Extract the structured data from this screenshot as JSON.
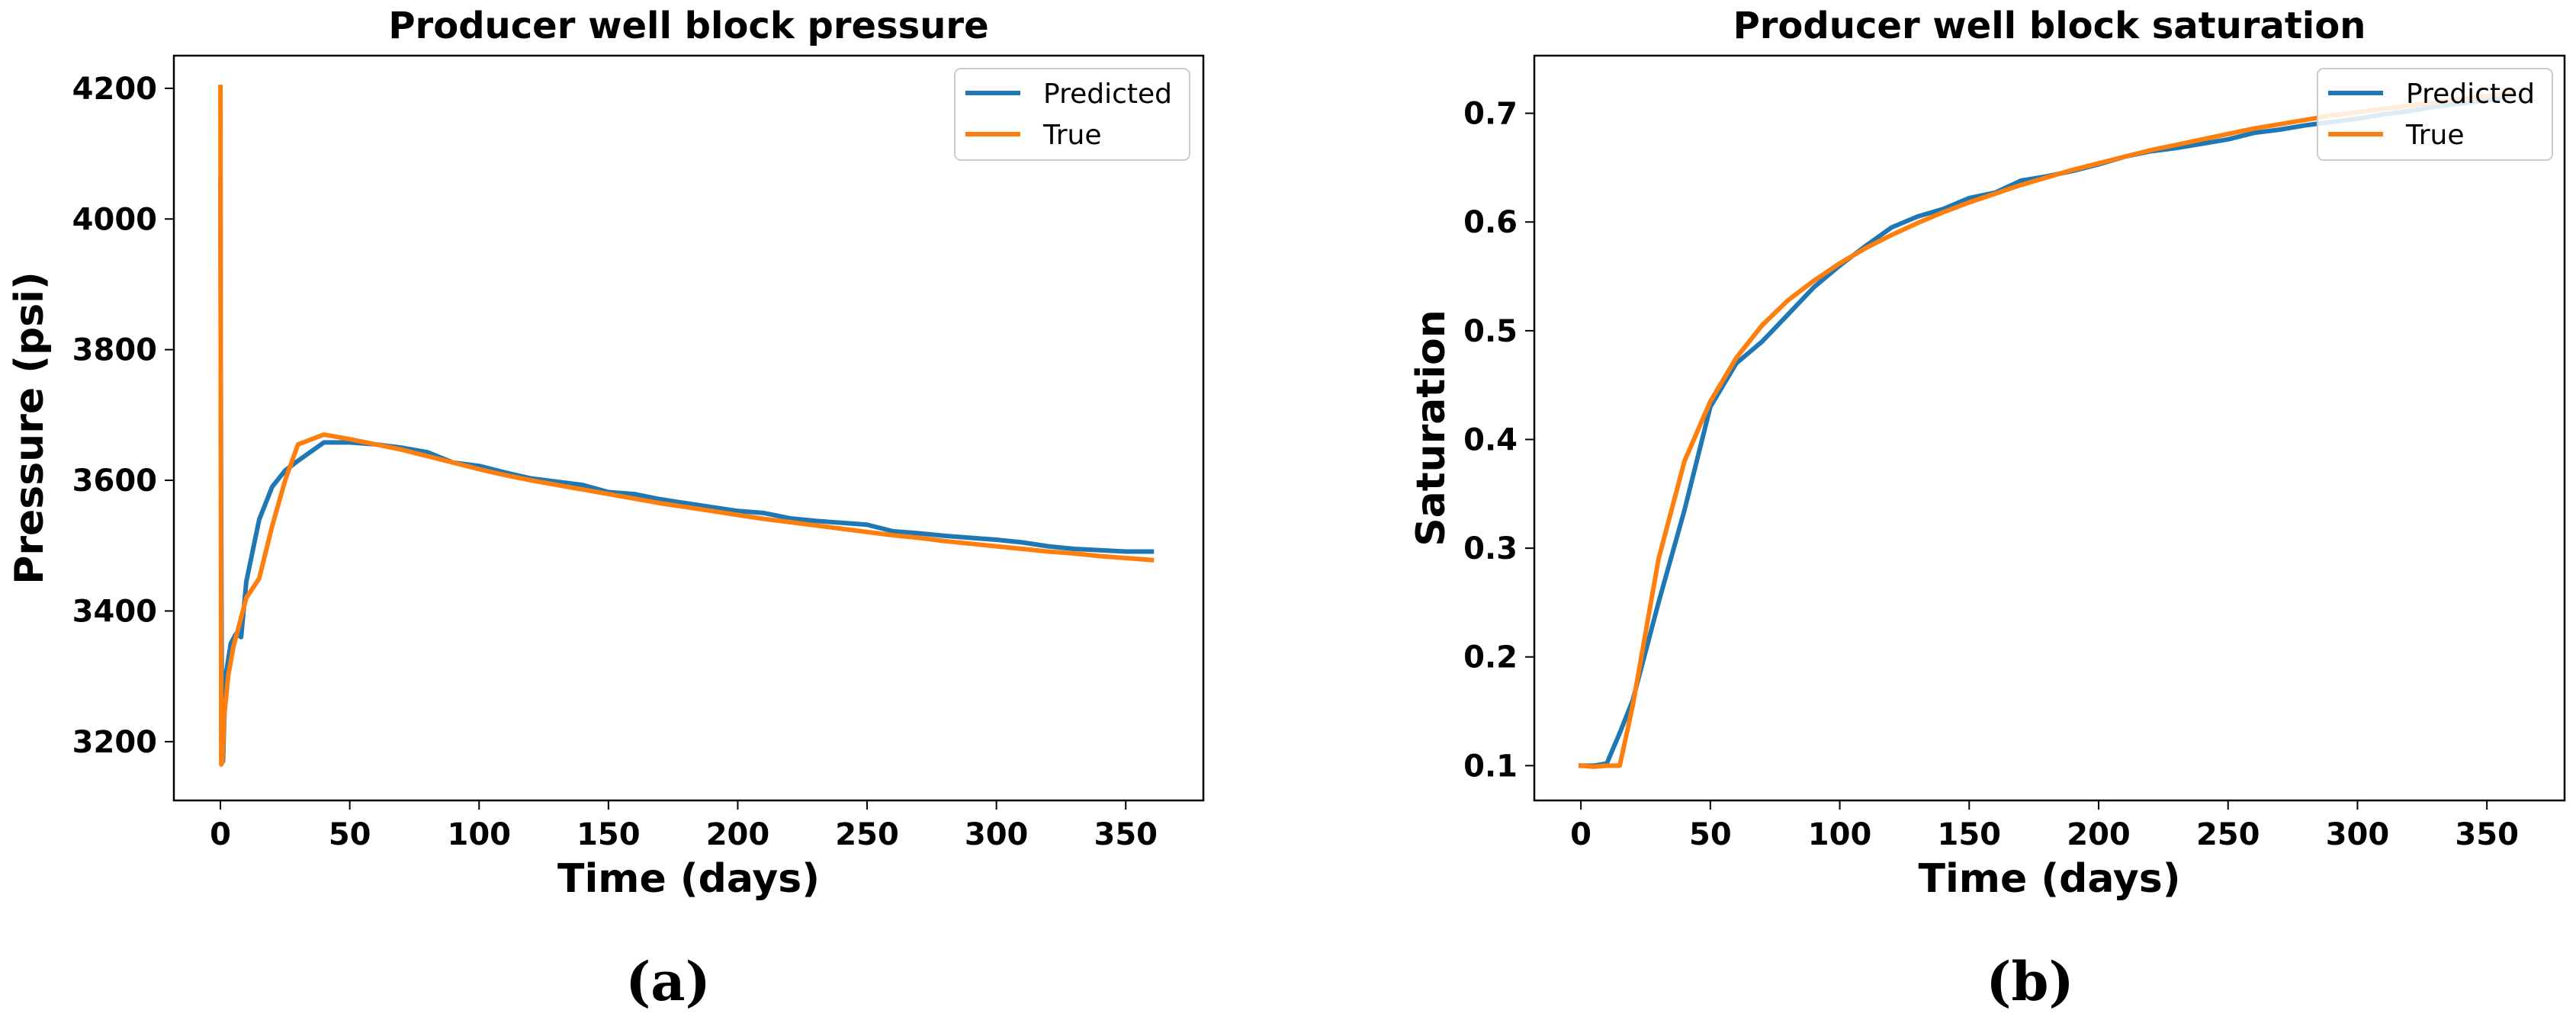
{
  "chart_data": [
    {
      "type": "line",
      "title": "Producer well block pressure",
      "xlabel": "Time (days)",
      "ylabel": "Pressure (psi)",
      "xlim": [
        -18,
        380
      ],
      "ylim": [
        3110,
        4250
      ],
      "xticks": [
        0,
        50,
        100,
        150,
        200,
        250,
        300,
        350
      ],
      "yticks": [
        3200,
        3400,
        3600,
        3800,
        4000,
        4200
      ],
      "legend": "top-right",
      "grid": false,
      "caption": "(a)",
      "series": [
        {
          "name": "Predicted",
          "color": "#1f77b4",
          "x": [
            0,
            0.2,
            0.5,
            1,
            2,
            4,
            6,
            8,
            10,
            15,
            20,
            25,
            30,
            40,
            50,
            60,
            70,
            80,
            90,
            100,
            110,
            120,
            130,
            140,
            150,
            160,
            170,
            180,
            190,
            200,
            210,
            220,
            230,
            240,
            250,
            260,
            270,
            280,
            290,
            300,
            310,
            320,
            330,
            340,
            350,
            360
          ],
          "y": [
            4060,
            3650,
            3290,
            3170,
            3300,
            3350,
            3365,
            3360,
            3445,
            3540,
            3590,
            3615,
            3630,
            3658,
            3658,
            3655,
            3650,
            3643,
            3627,
            3622,
            3612,
            3603,
            3598,
            3593,
            3582,
            3579,
            3571,
            3565,
            3559,
            3553,
            3550,
            3542,
            3538,
            3535,
            3532,
            3522,
            3519,
            3515,
            3512,
            3509,
            3505,
            3499,
            3495,
            3493,
            3491,
            3491
          ]
        },
        {
          "name": "True",
          "color": "#ff7f0e",
          "x": [
            0,
            0.3,
            0.7,
            1.5,
            3,
            5,
            8,
            10,
            15,
            20,
            25,
            30,
            40,
            50,
            60,
            70,
            80,
            90,
            100,
            110,
            120,
            130,
            140,
            150,
            160,
            170,
            180,
            190,
            200,
            210,
            220,
            230,
            240,
            250,
            260,
            270,
            280,
            290,
            300,
            310,
            320,
            330,
            340,
            350,
            360
          ],
          "y": [
            4202,
            3165,
            3168,
            3240,
            3300,
            3345,
            3390,
            3420,
            3450,
            3530,
            3600,
            3655,
            3670,
            3663,
            3655,
            3647,
            3637,
            3627,
            3617,
            3608,
            3600,
            3593,
            3586,
            3579,
            3572,
            3565,
            3559,
            3553,
            3547,
            3541,
            3536,
            3531,
            3526,
            3521,
            3516,
            3512,
            3507,
            3503,
            3499,
            3495,
            3491,
            3488,
            3484,
            3481,
            3478
          ]
        }
      ]
    },
    {
      "type": "line",
      "title": "Producer well block saturation",
      "xlabel": "Time (days)",
      "ylabel": "Saturation",
      "xlim": [
        -18,
        380
      ],
      "ylim": [
        0.068,
        0.753
      ],
      "xticks": [
        0,
        50,
        100,
        150,
        200,
        250,
        300,
        350
      ],
      "yticks": [
        0.1,
        0.2,
        0.3,
        0.4,
        0.5,
        0.6,
        0.7
      ],
      "legend": "top-right",
      "grid": false,
      "caption": "(b)",
      "series": [
        {
          "name": "Predicted",
          "color": "#1f77b4",
          "x": [
            0,
            5,
            10,
            15,
            20,
            30,
            40,
            50,
            60,
            70,
            80,
            90,
            100,
            110,
            120,
            130,
            140,
            150,
            160,
            170,
            180,
            190,
            200,
            210,
            220,
            230,
            240,
            250,
            260,
            270,
            280,
            290,
            300,
            310,
            320,
            330,
            340,
            350,
            360
          ],
          "y": [
            0.1,
            0.1,
            0.102,
            0.13,
            0.16,
            0.25,
            0.335,
            0.43,
            0.47,
            0.49,
            0.515,
            0.54,
            0.56,
            0.578,
            0.595,
            0.605,
            0.612,
            0.622,
            0.627,
            0.638,
            0.642,
            0.647,
            0.653,
            0.66,
            0.665,
            0.668,
            0.672,
            0.676,
            0.682,
            0.685,
            0.689,
            0.692,
            0.695,
            0.699,
            0.702,
            0.706,
            0.709,
            0.712,
            0.716
          ]
        },
        {
          "name": "True",
          "color": "#ff7f0e",
          "x": [
            0,
            5,
            10,
            15,
            20,
            30,
            40,
            50,
            60,
            70,
            80,
            90,
            100,
            110,
            120,
            130,
            140,
            150,
            160,
            170,
            180,
            190,
            200,
            210,
            220,
            230,
            240,
            250,
            260,
            270,
            280,
            290,
            300,
            310,
            320,
            330,
            340,
            350,
            360
          ],
          "y": [
            0.1,
            0.099,
            0.1,
            0.1,
            0.155,
            0.29,
            0.38,
            0.435,
            0.475,
            0.505,
            0.528,
            0.546,
            0.562,
            0.576,
            0.588,
            0.599,
            0.609,
            0.618,
            0.626,
            0.634,
            0.641,
            0.648,
            0.654,
            0.66,
            0.666,
            0.671,
            0.676,
            0.681,
            0.686,
            0.69,
            0.694,
            0.698,
            0.701,
            0.704,
            0.707,
            0.71,
            0.713,
            0.716,
            0.719
          ]
        }
      ]
    }
  ]
}
